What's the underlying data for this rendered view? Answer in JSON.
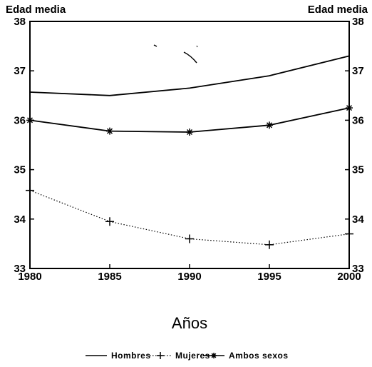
{
  "chart_data": {
    "type": "line",
    "title": "",
    "ylabel_left": "Edad media",
    "ylabel_right": "Edad media",
    "xlabel": "Años",
    "x": [
      1980,
      1985,
      1990,
      1995,
      2000
    ],
    "x_tick_labels": [
      "1980",
      "1985",
      "1990",
      "1995",
      "2000"
    ],
    "ylim": [
      33,
      38
    ],
    "y_ticks": [
      33,
      34,
      35,
      36,
      37,
      38
    ],
    "y_tick_labels": [
      "33",
      "34",
      "35",
      "36",
      "37",
      "38"
    ],
    "grid": false,
    "legend_position": "bottom",
    "series": [
      {
        "name": "Hombres",
        "values": [
          36.57,
          36.5,
          36.65,
          36.9,
          37.3
        ],
        "style": "solid",
        "marker": "none",
        "color": "#000000"
      },
      {
        "name": "Mujeres",
        "values": [
          34.58,
          33.95,
          33.6,
          33.48,
          33.7
        ],
        "style": "dotted",
        "marker": "plus",
        "color": "#000000"
      },
      {
        "name": "Ambos sexos",
        "values": [
          36.0,
          35.78,
          35.76,
          35.9,
          36.25
        ],
        "style": "solid",
        "marker": "star",
        "color": "#000000"
      }
    ]
  }
}
